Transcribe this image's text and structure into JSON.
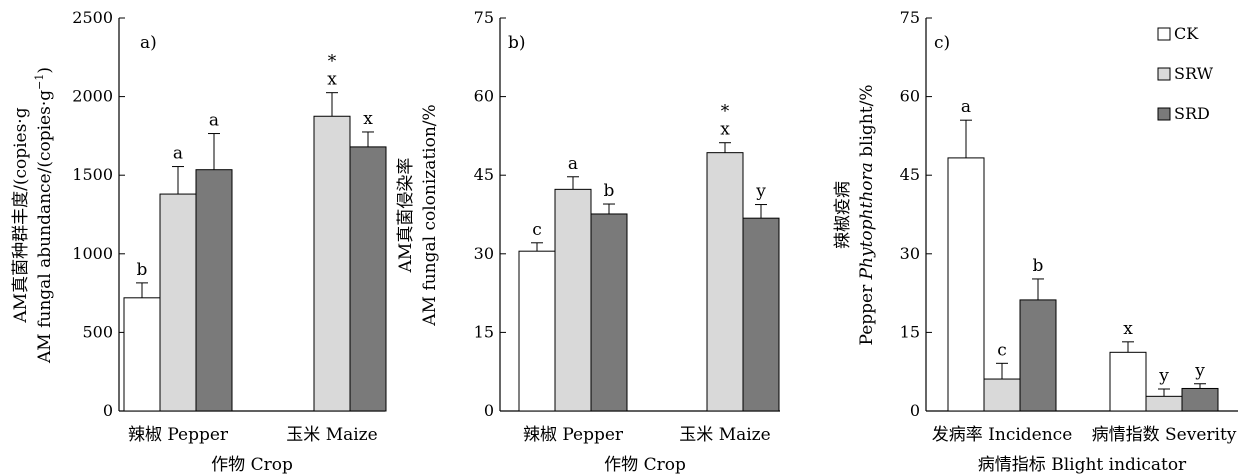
{
  "legend": {
    "items": [
      {
        "name": "CK",
        "color": "#ffffff"
      },
      {
        "name": "SRW",
        "color": "#d9d9d9"
      },
      {
        "name": "SRD",
        "color": "#7a7a7a"
      }
    ]
  },
  "chart_data": [
    {
      "type": "bar",
      "panel_label": "a)",
      "ylabel_cn": "AM真菌种群丰度/(copies·g",
      "ylabel_en": "AM fungal abundance/(copies·g",
      "ylabel_sup": "−1",
      "ylabel_close": ")",
      "xlabel": "作物 Crop",
      "ylim": [
        0,
        2500
      ],
      "yticks": [
        "0",
        "500",
        "1000",
        "1500",
        "2000",
        "2500"
      ],
      "categories": [
        "辣椒 Pepper",
        "玉米 Maize"
      ],
      "series": [
        {
          "name": "CK",
          "values": [
            720,
            null
          ],
          "errors": [
            95,
            null
          ],
          "letters": [
            "b",
            null
          ],
          "stars": [
            null,
            null
          ]
        },
        {
          "name": "SRW",
          "values": [
            1380,
            1875
          ],
          "errors": [
            175,
            150
          ],
          "letters": [
            "a",
            "x"
          ],
          "stars": [
            null,
            "*"
          ]
        },
        {
          "name": "SRD",
          "values": [
            1535,
            1680
          ],
          "errors": [
            230,
            95
          ],
          "letters": [
            "a",
            "x"
          ],
          "stars": [
            null,
            null
          ]
        }
      ]
    },
    {
      "type": "bar",
      "panel_label": "b)",
      "ylabel_cn": "AM真菌侵染率",
      "ylabel_en": "AM fungal colonization/%",
      "xlabel": "作物 Crop",
      "ylim": [
        0,
        75
      ],
      "yticks": [
        "0",
        "15",
        "30",
        "45",
        "60",
        "75"
      ],
      "categories": [
        "辣椒 Pepper",
        "玉米 Maize"
      ],
      "series": [
        {
          "name": "CK",
          "values": [
            30.5,
            null
          ],
          "errors": [
            1.6,
            null
          ],
          "letters": [
            "c",
            null
          ],
          "stars": [
            null,
            null
          ]
        },
        {
          "name": "SRW",
          "values": [
            42.3,
            49.3
          ],
          "errors": [
            2.4,
            1.9
          ],
          "letters": [
            "a",
            "x"
          ],
          "stars": [
            null,
            "*"
          ]
        },
        {
          "name": "SRD",
          "values": [
            37.6,
            36.8
          ],
          "errors": [
            1.9,
            2.6
          ],
          "letters": [
            "b",
            "y"
          ],
          "stars": [
            null,
            null
          ]
        }
      ]
    },
    {
      "type": "bar",
      "panel_label": "c)",
      "ylabel_cn": "辣椒疫病",
      "ylabel_en_pre": "Pepper ",
      "ylabel_en_it": "Phytophthora",
      "ylabel_en_post": " blight/%",
      "xlabel": "病情指标 Blight indicator",
      "ylim": [
        0,
        75
      ],
      "yticks": [
        "0",
        "15",
        "30",
        "45",
        "60",
        "75"
      ],
      "categories": [
        "发病率 Incidence",
        "病情指数 Severity"
      ],
      "series": [
        {
          "name": "CK",
          "values": [
            48.3,
            11.2
          ],
          "errors": [
            7.2,
            2.0
          ],
          "letters": [
            "a",
            "x"
          ],
          "stars": [
            null,
            null
          ]
        },
        {
          "name": "SRW",
          "values": [
            6.1,
            2.8
          ],
          "errors": [
            3.0,
            1.4
          ],
          "letters": [
            "c",
            "y"
          ],
          "stars": [
            null,
            null
          ]
        },
        {
          "name": "SRD",
          "values": [
            21.2,
            4.3
          ],
          "errors": [
            4.0,
            0.9
          ],
          "letters": [
            "b",
            "y"
          ],
          "stars": [
            null,
            null
          ]
        }
      ]
    }
  ]
}
